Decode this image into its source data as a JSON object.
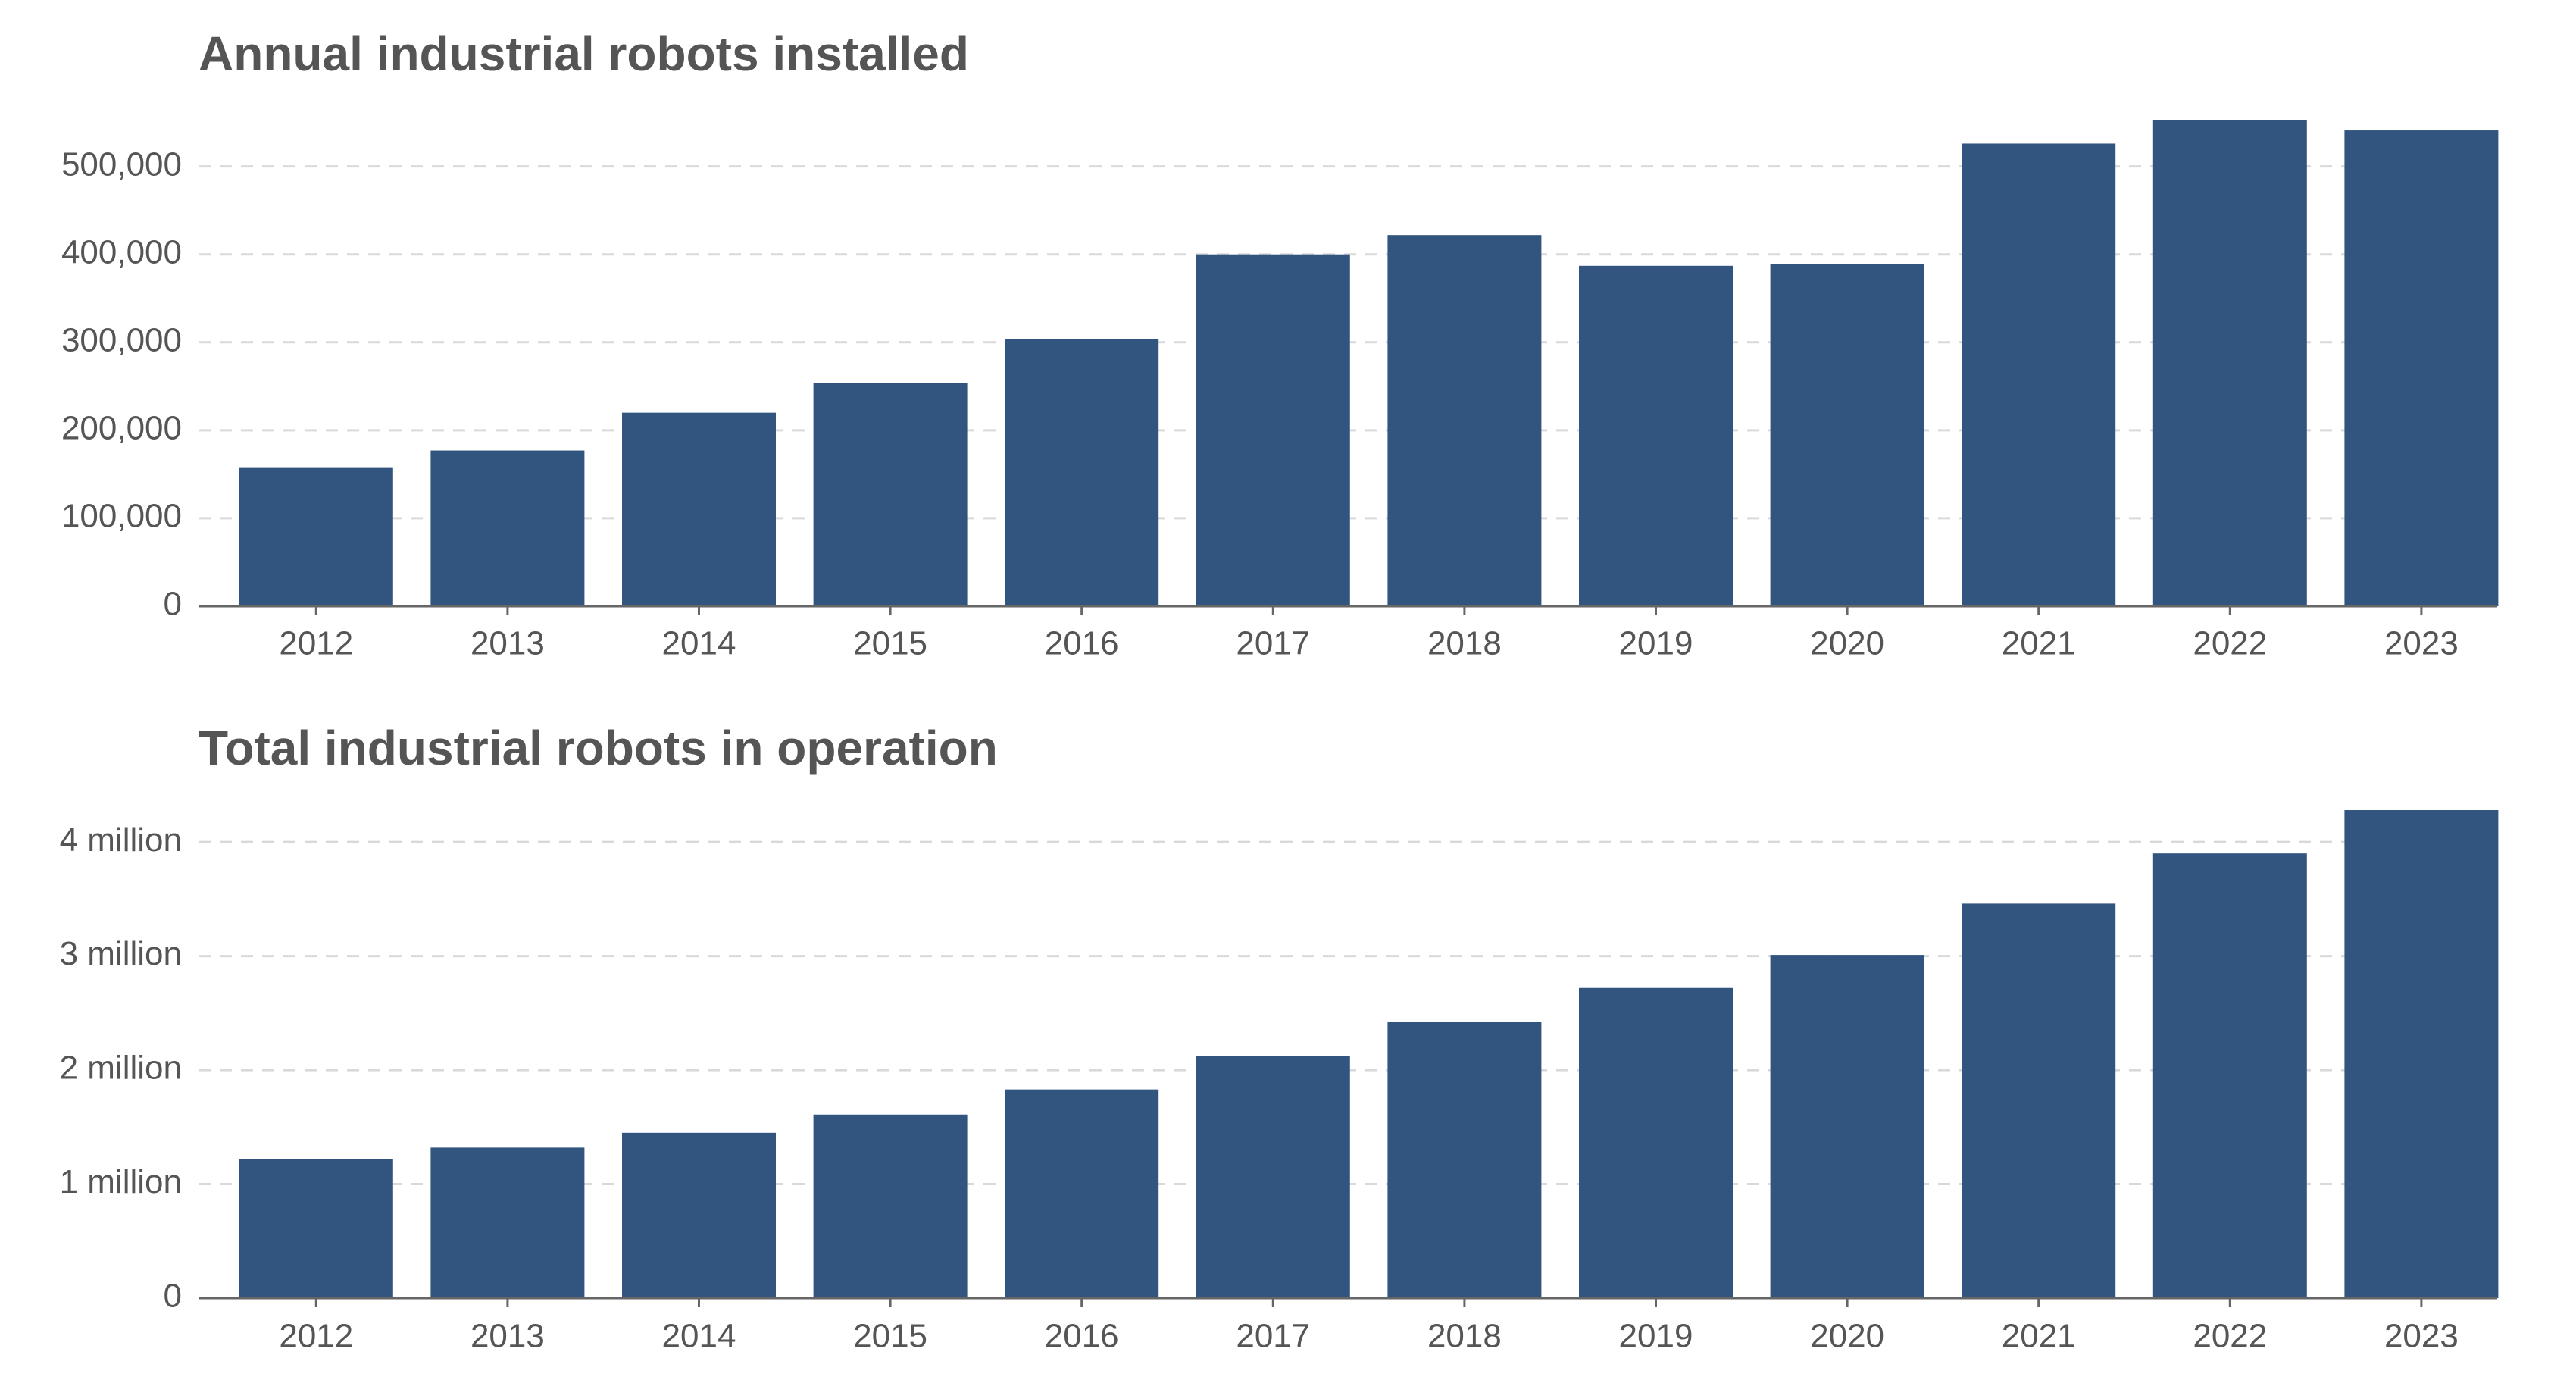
{
  "chart_data": [
    {
      "type": "bar",
      "title": "Annual industrial robots installed",
      "categories": [
        "2012",
        "2013",
        "2014",
        "2015",
        "2016",
        "2017",
        "2018",
        "2019",
        "2020",
        "2021",
        "2022",
        "2023"
      ],
      "values": [
        158000,
        177000,
        220000,
        254000,
        304000,
        400000,
        422000,
        387000,
        389000,
        526000,
        553000,
        541000
      ],
      "color": "#325580",
      "ylim": [
        0,
        560000
      ],
      "yticks": [
        0,
        {
          "value": 100000,
          "label": "100,000"
        },
        {
          "value": 200000,
          "label": "200,000"
        },
        {
          "value": 300000,
          "label": "300,000"
        },
        {
          "value": 400000,
          "label": "400,000"
        },
        {
          "value": 500000,
          "label": "500,000"
        }
      ],
      "grid": true
    },
    {
      "type": "bar",
      "title": "Total industrial robots in operation",
      "categories": [
        "2012",
        "2013",
        "2014",
        "2015",
        "2016",
        "2017",
        "2018",
        "2019",
        "2020",
        "2021",
        "2022",
        "2023"
      ],
      "values": [
        1220000,
        1320000,
        1450000,
        1610000,
        1830000,
        2120000,
        2420000,
        2720000,
        3010000,
        3460000,
        3900000,
        4280000
      ],
      "color": "#325580",
      "ylim": [
        0,
        4300000
      ],
      "yticks": [
        0,
        {
          "value": 1000000,
          "label": "1 million"
        },
        {
          "value": 2000000,
          "label": "2 million"
        },
        {
          "value": 3000000,
          "label": "3 million"
        },
        {
          "value": 4000000,
          "label": "4 million"
        }
      ],
      "grid": true
    }
  ]
}
